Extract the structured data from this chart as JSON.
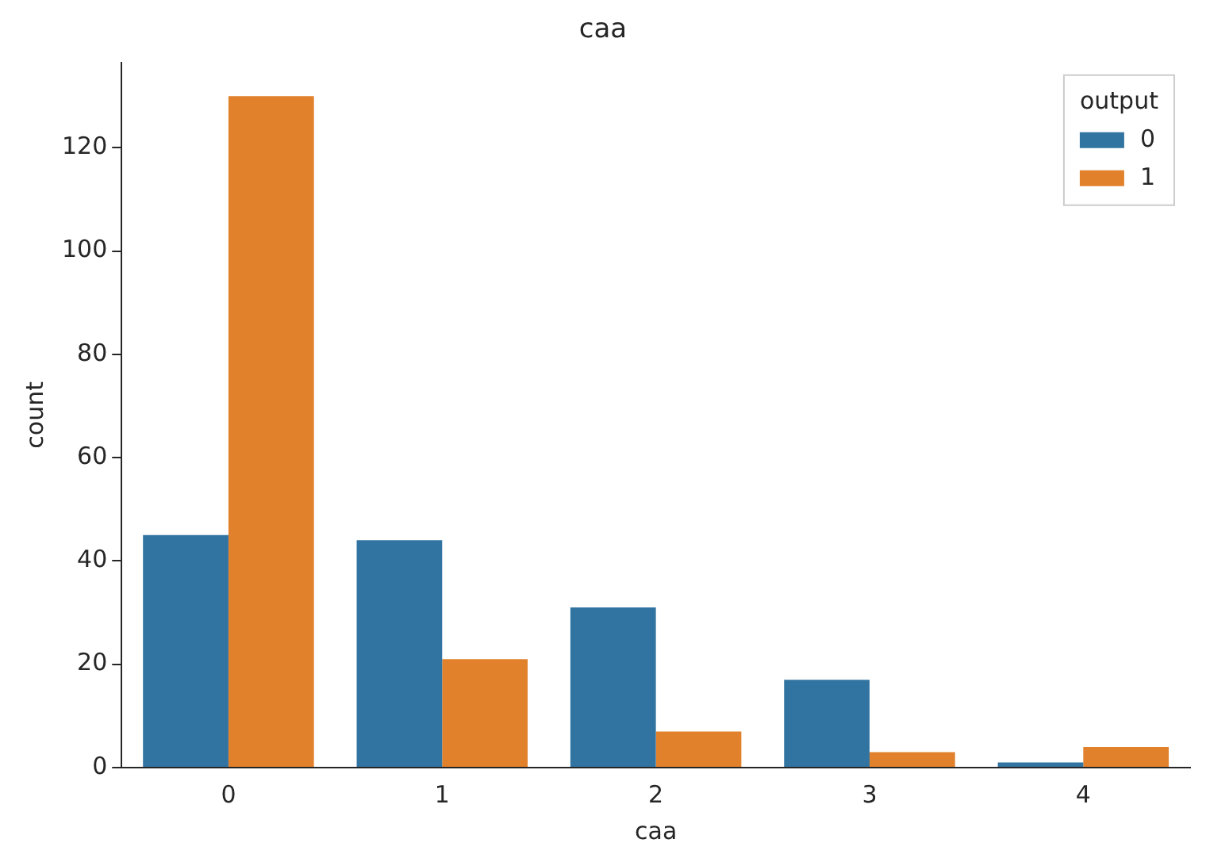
{
  "chart_data": {
    "type": "bar",
    "title": "caa",
    "xlabel": "caa",
    "ylabel": "count",
    "categories": [
      "0",
      "1",
      "2",
      "3",
      "4"
    ],
    "series": [
      {
        "name": "0",
        "color": "#3274a1",
        "values": [
          45,
          44,
          31,
          17,
          1
        ]
      },
      {
        "name": "1",
        "color": "#e1812c",
        "values": [
          130,
          21,
          7,
          3,
          4
        ]
      }
    ],
    "ylim": [
      0,
      136.5
    ],
    "yticks": [
      0,
      20,
      40,
      60,
      80,
      100,
      120
    ],
    "grid": false,
    "legend": "top right",
    "legend_title": "output"
  }
}
